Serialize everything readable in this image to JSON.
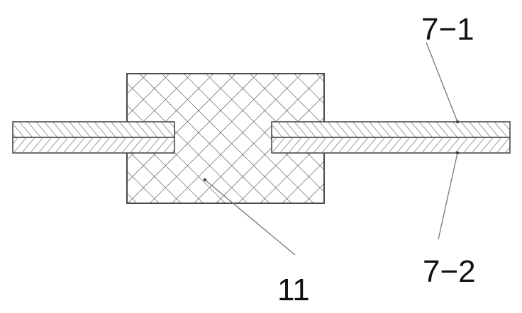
{
  "labels": {
    "upper_layer": "7−1",
    "lower_layer": "7−2",
    "block": "11"
  },
  "colors": {
    "outline": "#4a4a4a",
    "cross_hatch": "#555555",
    "diagonal_hatch": "#666666",
    "leader_line": "#777777",
    "label_text": "#111111"
  }
}
